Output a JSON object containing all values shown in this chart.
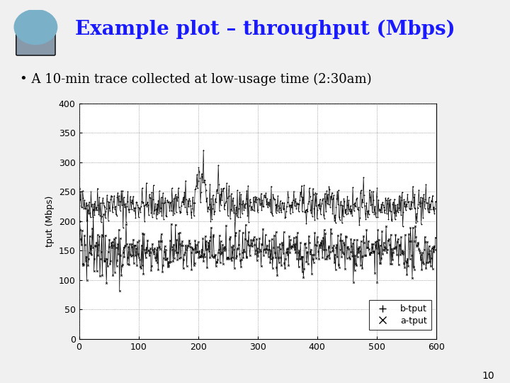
{
  "title": "Example plot – throughput (Mbps)",
  "subtitle": "• A 10-min trace collected at low-usage time (2:30am)",
  "ylabel": "tput (Mbps)",
  "xlabel": "",
  "xlim": [
    0,
    600
  ],
  "ylim": [
    0,
    400
  ],
  "yticks": [
    0,
    50,
    100,
    150,
    200,
    250,
    300,
    350,
    400
  ],
  "xticks": [
    0,
    100,
    200,
    300,
    400,
    500,
    600
  ],
  "b_tput_mean": 228,
  "b_tput_std": 15,
  "a_tput_mean": 148,
  "a_tput_std": 18,
  "n_points": 600,
  "seed": 42,
  "bg_color": "#f0f0f0",
  "plot_bg_color": "#ffffff",
  "line_color": "#000000",
  "title_color": "#1a1aff",
  "subtitle_color": "#000000",
  "header_line_color": "#00cccc",
  "title_fontsize": 20,
  "subtitle_fontsize": 13,
  "plot_fontsize": 9,
  "page_num": "10"
}
